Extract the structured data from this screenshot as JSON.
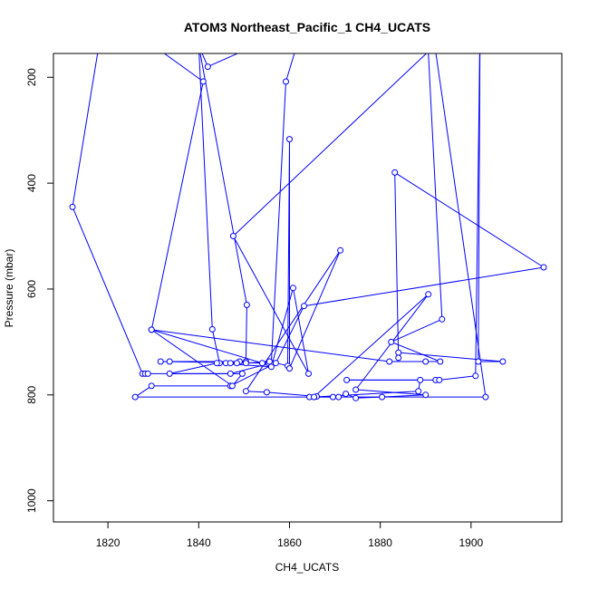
{
  "chart_data": {
    "type": "line",
    "title": "ATOM3 Northeast_Pacific_1 CH4_UCATS",
    "xlabel": "CH4_UCATS",
    "ylabel": "Pressure (mbar)",
    "xlim": [
      1808,
      1920
    ],
    "ylim": [
      1040,
      155
    ],
    "y_inverted": true,
    "x_ticks": [
      1820,
      1840,
      1860,
      1880,
      1900
    ],
    "x_tick_labels": [
      "1820",
      "1840",
      "1860",
      "1880",
      "1900"
    ],
    "y_ticks": [
      200,
      400,
      600,
      800,
      1000
    ],
    "y_tick_labels": [
      "200",
      "400",
      "600",
      "800",
      "1000"
    ],
    "grid": false,
    "legend": "none",
    "series": [
      {
        "color": "#0000ff",
        "marker": "open-circle",
        "points": [
          [
            1826.0,
            140
          ],
          [
            1818.0,
            140
          ],
          [
            1812.2,
            445
          ],
          [
            1827.6,
            760
          ],
          [
            1828.2,
            760
          ],
          [
            1828.8,
            760
          ],
          [
            1847.0,
            760
          ],
          [
            1856.0,
            740
          ],
          [
            1859.2,
            208
          ],
          [
            1863.0,
            100
          ],
          [
            1842.0,
            180
          ],
          [
            1840.0,
            140
          ],
          [
            1830.0,
            140
          ],
          [
            1841.0,
            208
          ],
          [
            1829.6,
            677
          ],
          [
            1854.0,
            740
          ],
          [
            1855.4,
            740
          ],
          [
            1831.6,
            737
          ],
          [
            1833.6,
            737
          ],
          [
            1849.0,
            737
          ],
          [
            1850.4,
            737
          ],
          [
            1850.6,
            630
          ],
          [
            1840.0,
            140
          ],
          [
            1843.0,
            676
          ],
          [
            1844.6,
            740
          ],
          [
            1846.0,
            740
          ],
          [
            1847.0,
            740
          ],
          [
            1848.4,
            740
          ],
          [
            1850.4,
            740
          ],
          [
            1855.6,
            737
          ],
          [
            1859.6,
            745
          ],
          [
            1860.0,
            317
          ],
          [
            1860.0,
            750
          ],
          [
            1871.2,
            527
          ],
          [
            1850.4,
            793
          ],
          [
            1855.0,
            795
          ],
          [
            1866.0,
            803
          ],
          [
            1864.4,
            804
          ],
          [
            1869.6,
            804
          ],
          [
            1870.8,
            804
          ],
          [
            1872.4,
            798
          ],
          [
            1874.6,
            806
          ],
          [
            1880.4,
            804
          ],
          [
            1890.0,
            800
          ],
          [
            1874.6,
            790
          ],
          [
            1890.6,
            610
          ],
          [
            1865.4,
            804
          ],
          [
            1888.4,
            793
          ],
          [
            1888.8,
            772
          ],
          [
            1872.6,
            772
          ],
          [
            1892.2,
            772
          ],
          [
            1893.0,
            772
          ],
          [
            1901.0,
            764
          ],
          [
            1902.0,
            100
          ],
          [
            1901.6,
            737
          ],
          [
            1907.0,
            737
          ],
          [
            1884.0,
            720
          ],
          [
            1884.0,
            730
          ],
          [
            1883.2,
            380
          ],
          [
            1916.0,
            559
          ],
          [
            1863.2,
            632
          ],
          [
            1857.0,
            740
          ],
          [
            1847.0,
            783
          ],
          [
            1829.6,
            783
          ],
          [
            1826.0,
            804
          ],
          [
            1903.2,
            804
          ],
          [
            1892.0,
            140
          ],
          [
            1847.6,
            500
          ],
          [
            1864.2,
            760
          ],
          [
            1860.8,
            598
          ],
          [
            1856.0,
            747
          ],
          [
            1844.0,
            740
          ],
          [
            1833.6,
            760
          ],
          [
            1849.6,
            760
          ],
          [
            1847.4,
            783
          ],
          [
            1829.6,
            677
          ],
          [
            1882.0,
            737
          ],
          [
            1890.0,
            737
          ],
          [
            1893.2,
            737
          ],
          [
            1882.4,
            700
          ],
          [
            1893.6,
            657
          ],
          [
            1890.4,
            120
          ],
          [
            1887.4,
            120
          ],
          [
            1853.0,
            140
          ],
          [
            1835.4,
            140
          ]
        ]
      }
    ]
  }
}
